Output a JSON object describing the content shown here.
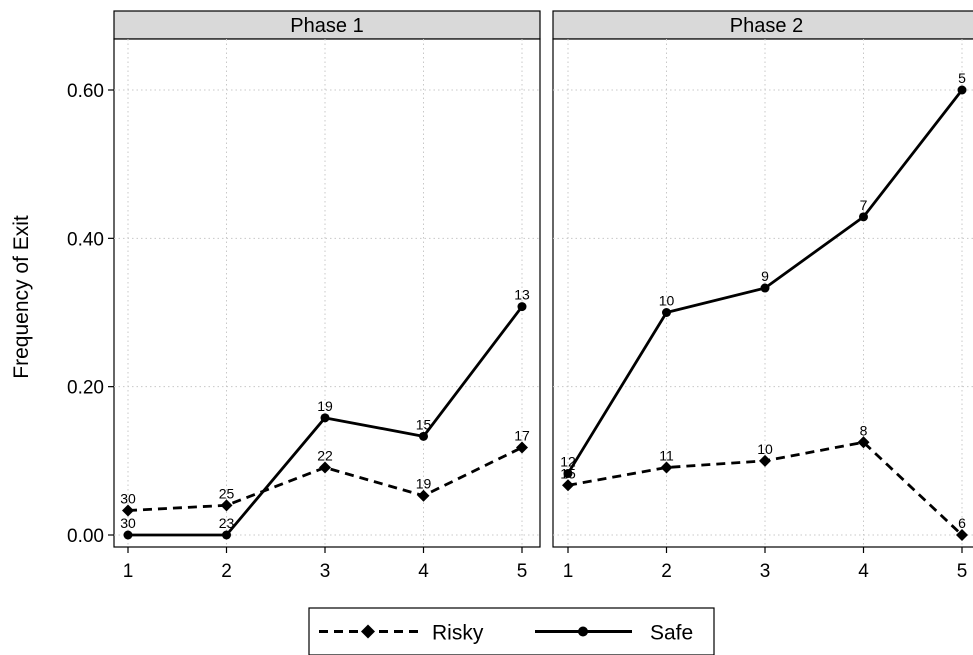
{
  "chart_data": {
    "type": "line",
    "ylabel": "Frequency of Exit",
    "ylim": [
      0,
      0.65
    ],
    "yticks": [
      0,
      0.2,
      0.4,
      0.6
    ],
    "ytick_labels": [
      "0.00",
      "0.20",
      "0.40",
      "0.60"
    ],
    "x": [
      1,
      2,
      3,
      4,
      5
    ],
    "xtick_labels": [
      "1",
      "2",
      "3",
      "4",
      "5"
    ],
    "grid": true,
    "legend_position": "bottom",
    "panels": [
      {
        "title": "Phase 1",
        "series": [
          {
            "name": "Risky",
            "values": [
              0.033,
              0.04,
              0.091,
              0.053,
              0.118
            ],
            "labels": [
              "30",
              "25",
              "22",
              "19",
              "17"
            ]
          },
          {
            "name": "Safe",
            "values": [
              0.0,
              0.0,
              0.158,
              0.133,
              0.308
            ],
            "labels": [
              "30",
              "23",
              "19",
              "15",
              "13"
            ]
          }
        ]
      },
      {
        "title": "Phase 2",
        "series": [
          {
            "name": "Risky",
            "values": [
              0.067,
              0.091,
              0.1,
              0.125,
              0.0
            ],
            "labels": [
              "15",
              "11",
              "10",
              "8",
              "6"
            ]
          },
          {
            "name": "Safe",
            "values": [
              0.083,
              0.3,
              0.333,
              0.429,
              0.6
            ],
            "labels": [
              "12",
              "10",
              "9",
              "7",
              "5"
            ]
          }
        ]
      }
    ]
  }
}
